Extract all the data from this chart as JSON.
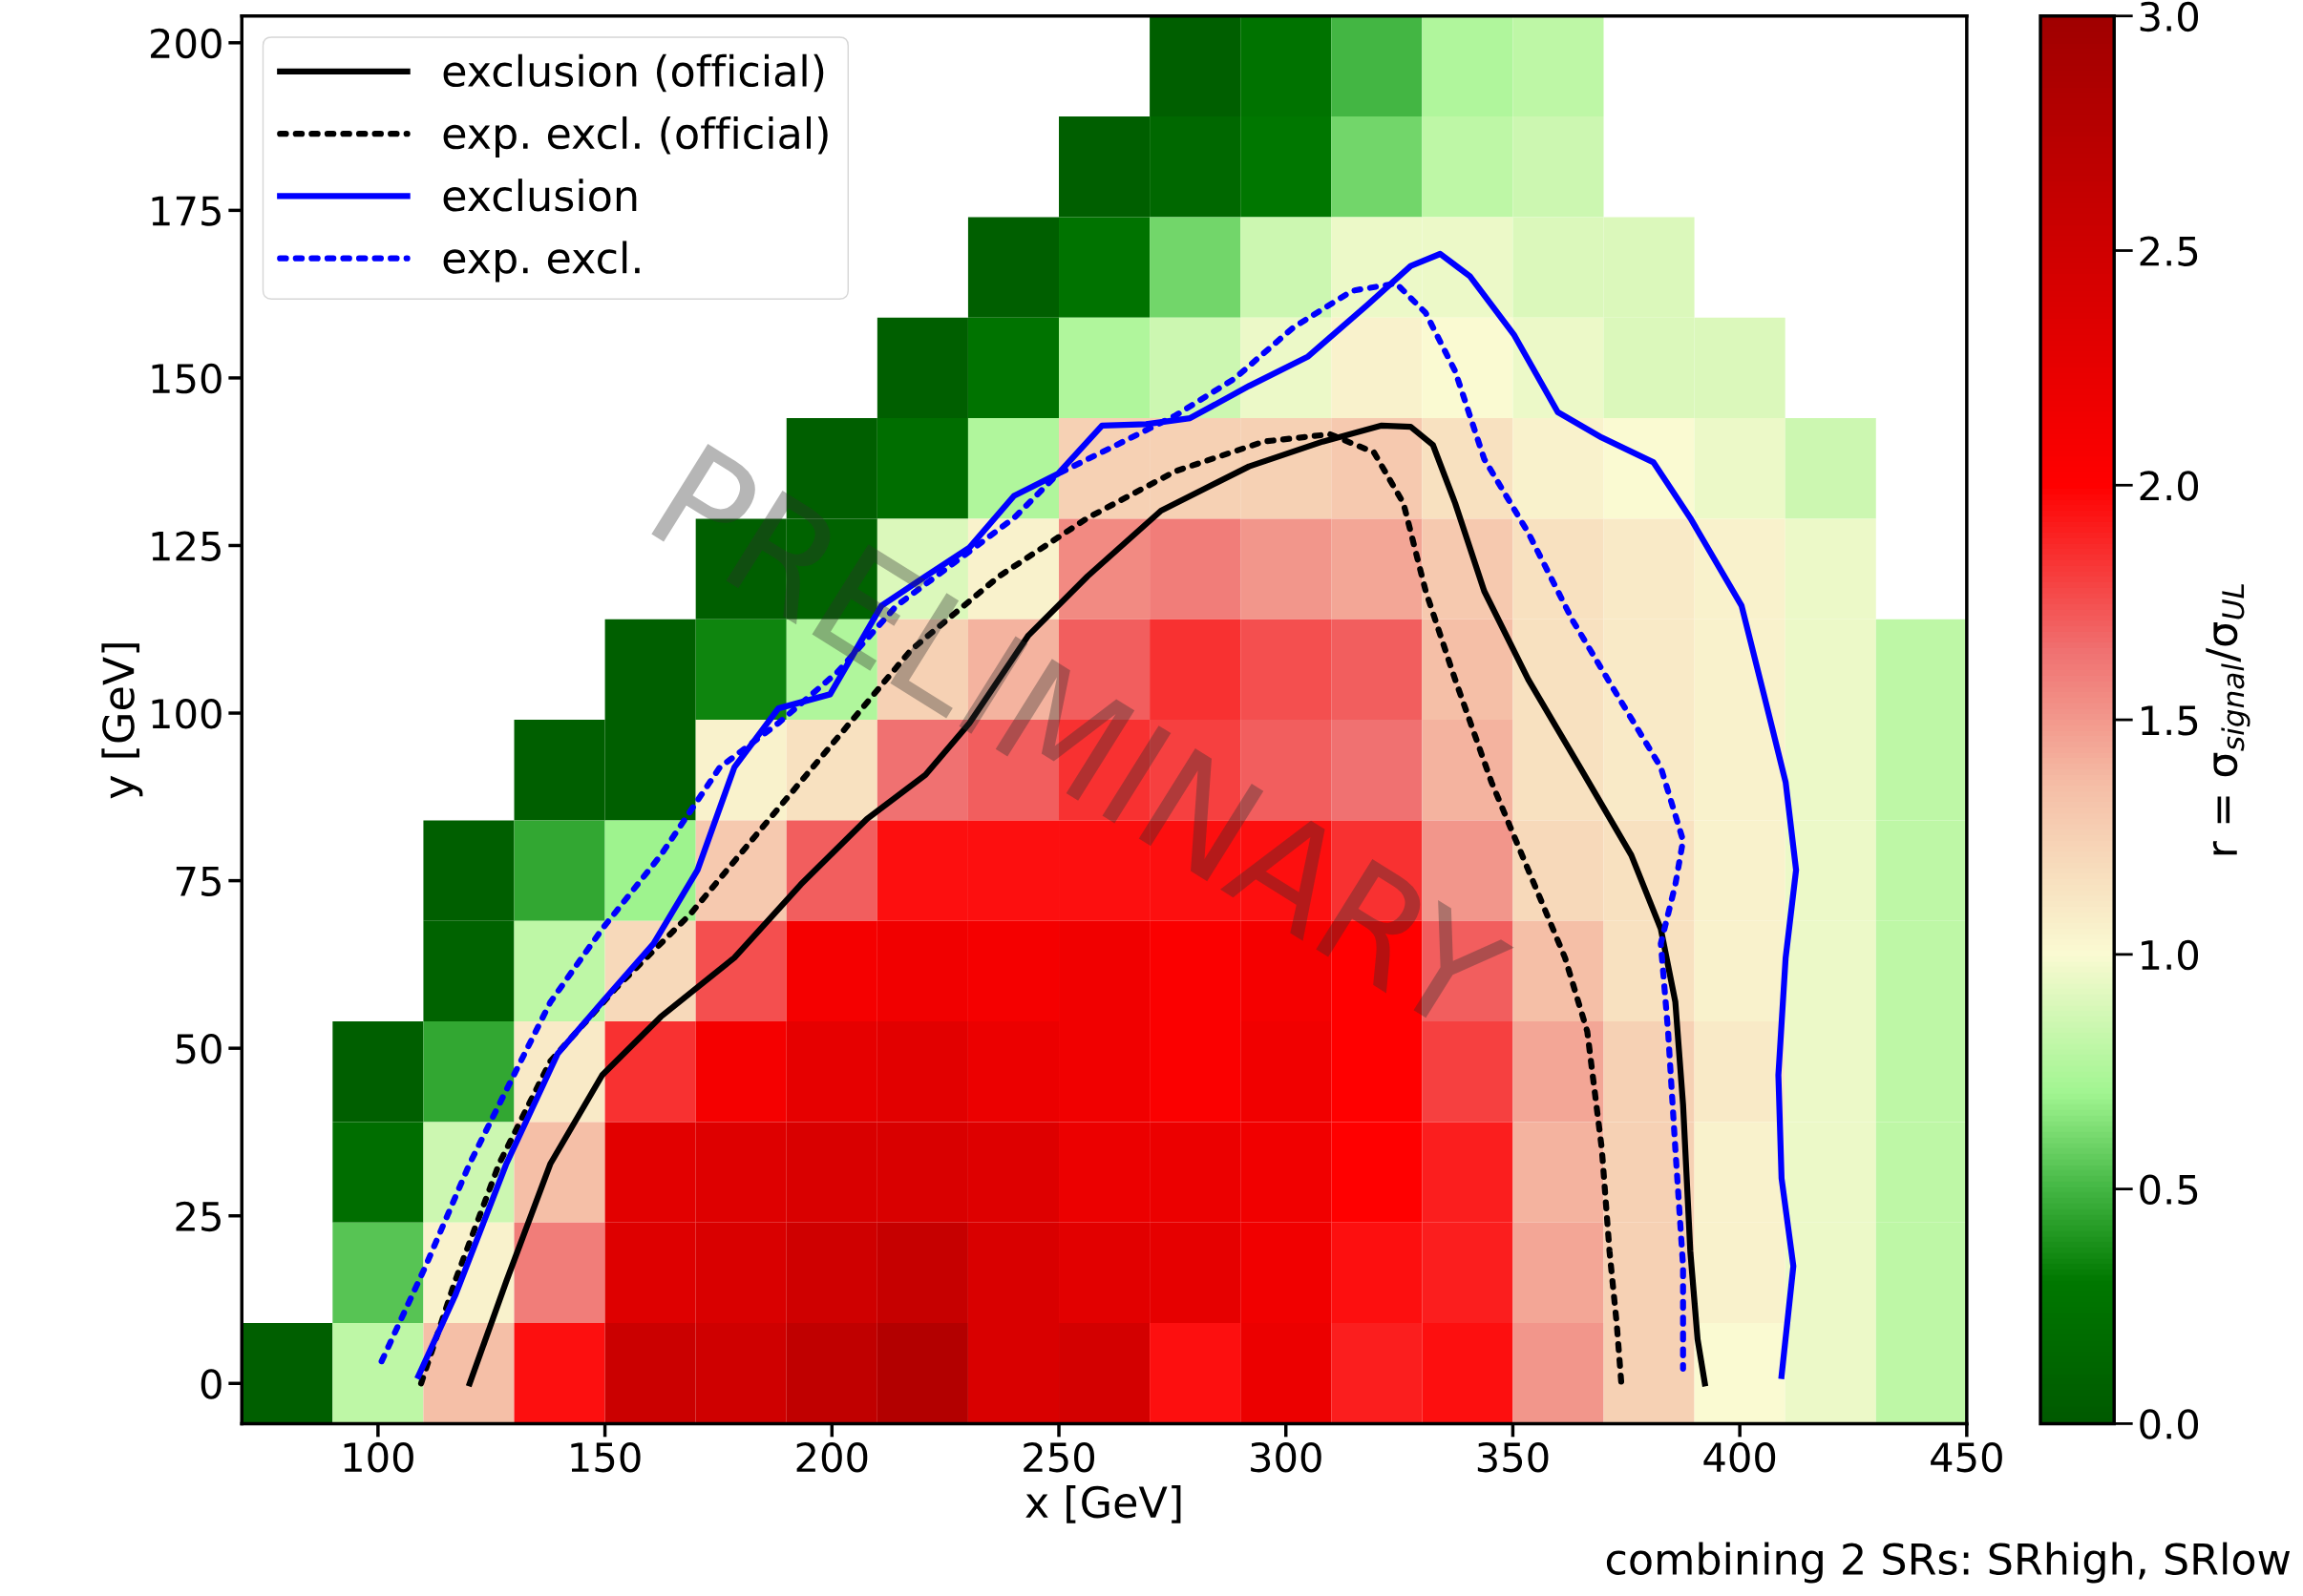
{
  "chart_data": {
    "type": "heatmap",
    "xlabel": "x [GeV]",
    "ylabel": "y [GeV]",
    "clabel": "r = σ$_{signal}$/σ$_{UL}$",
    "x": [
      80,
      100,
      120,
      140,
      160,
      180,
      200,
      220,
      240,
      260,
      280,
      300,
      320,
      340,
      360,
      380,
      400,
      420,
      440
    ],
    "y": [
      196.5,
      181.5,
      166.5,
      151.5,
      136.5,
      121.5,
      106.5,
      91.5,
      76.5,
      61.5,
      46.5,
      31.5,
      16.5,
      1.5
    ],
    "cells": [
      [
        null,
        null,
        null,
        null,
        null,
        null,
        null,
        null,
        null,
        null,
        0.05,
        0.25,
        0.5,
        0.75,
        0.8,
        null,
        null,
        null,
        null
      ],
      [
        null,
        null,
        null,
        null,
        null,
        null,
        null,
        null,
        null,
        0.05,
        0.15,
        0.3,
        0.6,
        0.8,
        0.85,
        null,
        null,
        null,
        null
      ],
      [
        null,
        null,
        null,
        null,
        null,
        null,
        null,
        null,
        0.05,
        0.25,
        0.6,
        0.85,
        0.95,
        0.95,
        0.9,
        0.9,
        null,
        null,
        null
      ],
      [
        null,
        null,
        null,
        null,
        null,
        null,
        null,
        0.05,
        0.25,
        0.75,
        0.85,
        0.95,
        1.05,
        1.0,
        0.95,
        0.9,
        0.9,
        null,
        null
      ],
      [
        null,
        null,
        null,
        null,
        null,
        null,
        0.05,
        0.2,
        0.75,
        1.25,
        1.25,
        1.25,
        1.3,
        1.15,
        1.05,
        1.0,
        0.95,
        0.85,
        null
      ],
      [
        null,
        null,
        null,
        null,
        null,
        0.05,
        0.1,
        0.9,
        1.05,
        1.55,
        1.6,
        1.5,
        1.45,
        1.3,
        1.15,
        1.1,
        1.05,
        0.95,
        null
      ],
      [
        null,
        null,
        null,
        null,
        0.05,
        0.35,
        0.75,
        1.25,
        1.4,
        1.7,
        1.85,
        1.75,
        1.7,
        1.35,
        1.15,
        1.1,
        1.05,
        0.95,
        0.8
      ],
      [
        null,
        null,
        null,
        0.05,
        0.05,
        1.05,
        1.15,
        1.65,
        1.7,
        1.85,
        1.8,
        1.7,
        1.65,
        1.4,
        1.15,
        1.1,
        1.05,
        0.95,
        0.8
      ],
      [
        null,
        null,
        0.05,
        0.45,
        0.7,
        1.3,
        1.7,
        1.95,
        1.95,
        1.95,
        1.95,
        1.95,
        1.85,
        1.5,
        1.2,
        1.15,
        1.05,
        0.95,
        0.8
      ],
      [
        null,
        null,
        0.1,
        0.8,
        1.2,
        1.75,
        2.1,
        2.15,
        2.1,
        2.15,
        2.05,
        2.1,
        2.0,
        1.7,
        1.35,
        1.15,
        1.05,
        0.95,
        0.8
      ],
      [
        null,
        0.05,
        0.45,
        1.1,
        1.85,
        2.1,
        2.25,
        2.3,
        2.2,
        2.15,
        2.05,
        2.15,
        2.0,
        1.8,
        1.45,
        1.25,
        1.1,
        0.95,
        0.8
      ],
      [
        null,
        0.2,
        0.85,
        1.35,
        2.3,
        2.35,
        2.4,
        2.4,
        2.35,
        2.2,
        2.2,
        2.15,
        2.0,
        1.9,
        1.4,
        1.25,
        1.05,
        0.95,
        0.8
      ],
      [
        null,
        0.55,
        1.05,
        1.6,
        2.35,
        2.4,
        2.5,
        2.6,
        2.4,
        2.3,
        2.25,
        2.15,
        1.95,
        1.9,
        1.45,
        1.25,
        1.05,
        0.95,
        0.8
      ],
      [
        0.05,
        0.8,
        1.35,
        1.95,
        2.55,
        2.5,
        2.65,
        2.8,
        2.4,
        2.45,
        1.95,
        2.2,
        1.9,
        1.95,
        1.5,
        1.25,
        1.0,
        0.95,
        0.8
      ]
    ],
    "clim": [
      0,
      3
    ],
    "cticks": [
      {
        "value": 0,
        "label": "0.0"
      },
      {
        "value": 0.5,
        "label": "0.5"
      },
      {
        "value": 1,
        "label": "1.0"
      },
      {
        "value": 1.5,
        "label": "1.5"
      },
      {
        "value": 2,
        "label": "2.0"
      },
      {
        "value": 2.5,
        "label": "2.5"
      },
      {
        "value": 3,
        "label": "3.0"
      }
    ],
    "xlim": [
      70,
      450
    ],
    "xticks": [
      100,
      150,
      200,
      250,
      300,
      350,
      400,
      450
    ],
    "ylim": [
      -6,
      204
    ],
    "yticks": [
      0,
      25,
      50,
      75,
      100,
      125,
      150,
      175,
      200
    ],
    "grid": false,
    "legend": "top left",
    "series": [
      {
        "name": "exclusion (official)",
        "type": "line",
        "color": "#000000",
        "line_style": "solid",
        "x": [
          120.2,
          128.3,
          138.0,
          149.4,
          162.3,
          178.5,
          193.1,
          207.7,
          220.6,
          230.3,
          243.3,
          256.3,
          272.5,
          291.9,
          308.1,
          321.1,
          327.5,
          332.4,
          337.3,
          343.7,
          353.4,
          364.8,
          376.1,
          382.6,
          385.8,
          387.5,
          389.1,
          390.7,
          392.3
        ],
        "values": [
          0,
          15.3,
          32.8,
          46.0,
          54.7,
          63.5,
          74.4,
          84.2,
          90.8,
          98.5,
          111.6,
          120.4,
          130.2,
          136.8,
          140.5,
          142.9,
          142.7,
          140.0,
          131.3,
          118.2,
          105.0,
          91.9,
          78.8,
          67.8,
          56.9,
          41.6,
          19.7,
          6.6,
          0
        ]
      },
      {
        "name": "exp. excl. (official)",
        "type": "line",
        "color": "#000000",
        "line_style": "dotted",
        "x": [
          109.5,
          117.0,
          126.7,
          138.0,
          152.6,
          168.8,
          185.0,
          201.2,
          217.4,
          236.8,
          256.3,
          275.7,
          295.1,
          309.7,
          319.4,
          325.9,
          330.8,
          337.3,
          345.3,
          353.4,
          361.5,
          366.4,
          369.6,
          371.3,
          372.9,
          373.9
        ],
        "values": [
          0,
          15.3,
          32.8,
          48.1,
          59.1,
          70.0,
          83.2,
          96.3,
          109.4,
          120.4,
          129.1,
          136.1,
          140.5,
          141.6,
          138.9,
          131.3,
          118.2,
          105.0,
          89.7,
          76.6,
          63.5,
          52.5,
          35.0,
          19.7,
          8.8,
          0
        ]
      },
      {
        "name": "exclusion",
        "type": "line",
        "color": "#0000ff",
        "line_style": "solid",
        "x": [
          108.9,
          117.0,
          128.3,
          139.6,
          149.4,
          160.7,
          170.4,
          178.5,
          188.2,
          199.6,
          210.9,
          220.6,
          230.3,
          240.1,
          249.8,
          259.5,
          269.2,
          278.9,
          291.9,
          304.9,
          317.8,
          327.5,
          334.0,
          340.5,
          350.2,
          359.9,
          369.6,
          381.0,
          389.1,
          400.4,
          405.3,
          410.1,
          412.4,
          410.1,
          408.5,
          409.2,
          411.8,
          409.2
        ],
        "values": [
          1.1,
          13.1,
          32.8,
          49.2,
          56.9,
          65.6,
          76.6,
          91.9,
          100.7,
          102.8,
          116.0,
          120.4,
          124.7,
          132.4,
          135.7,
          142.9,
          143.1,
          144.0,
          148.8,
          153.2,
          160.8,
          166.7,
          168.5,
          165.2,
          156.5,
          144.9,
          141.1,
          137.4,
          129.1,
          116.0,
          102.8,
          89.7,
          76.6,
          63.5,
          46.0,
          30.6,
          17.5,
          1.1
        ]
      },
      {
        "name": "exp. excl.",
        "type": "line",
        "color": "#0000ff",
        "line_style": "dotted",
        "x": [
          100.8,
          110.5,
          120.2,
          128.3,
          138.0,
          149.4,
          162.3,
          175.3,
          188.2,
          201.2,
          214.2,
          227.1,
          240.1,
          249.8,
          262.7,
          275.7,
          288.7,
          301.6,
          314.6,
          324.3,
          330.8,
          337.3,
          343.7,
          353.4,
          363.2,
          372.9,
          382.6,
          387.5,
          385.8,
          382.6,
          384.2,
          385.8,
          387.5,
          387.5
        ],
        "values": [
          3.3,
          17.5,
          32.8,
          43.8,
          56.9,
          67.8,
          78.8,
          91.9,
          98.5,
          106.1,
          116.0,
          122.5,
          129.1,
          135.7,
          140.0,
          144.4,
          149.9,
          157.5,
          163.0,
          164.1,
          159.7,
          151.0,
          137.9,
          126.9,
          113.8,
          102.8,
          91.9,
          81.0,
          74.4,
          65.6,
          52.5,
          35.0,
          17.5,
          2.2
        ]
      }
    ],
    "annotations": [
      "PRELIMINARY",
      "combining 2 SRs: SRhigh, SRlow"
    ]
  }
}
